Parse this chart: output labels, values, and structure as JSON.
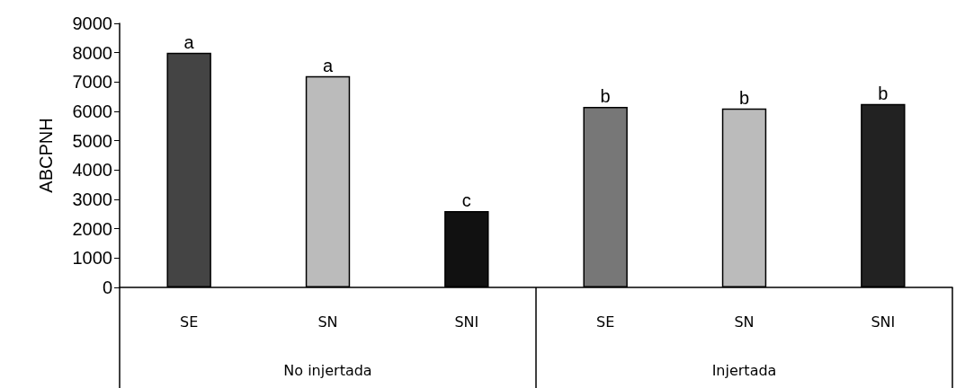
{
  "chart_data": {
    "type": "bar",
    "ylabel": "ABCPNH",
    "categories": [
      "SE",
      "SN",
      "SNI",
      "SE",
      "SN",
      "SNI"
    ],
    "values": [
      8000,
      7200,
      2600,
      6150,
      6100,
      6250
    ],
    "colors": [
      "#444444",
      "#bbbbbb",
      "#111111",
      "#777777",
      "#bbbbbb",
      "#222222"
    ],
    "value_labels": [
      "a",
      "a",
      "c",
      "b",
      "b",
      "b"
    ],
    "annotations": [
      "No injertada",
      "Injertada"
    ],
    "ylim": [
      0,
      9000
    ],
    "yticks": [
      0,
      1000,
      2000,
      3000,
      4000,
      5000,
      6000,
      7000,
      8000,
      9000
    ],
    "grid": false
  }
}
